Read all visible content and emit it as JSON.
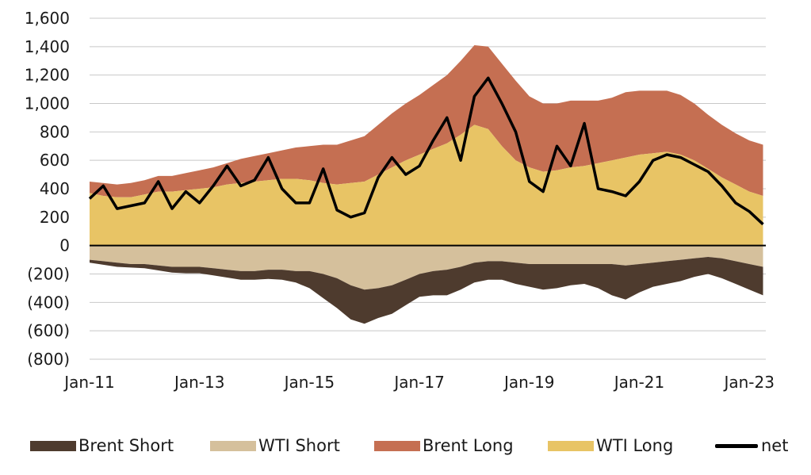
{
  "chart_data": {
    "type": "area",
    "title": "",
    "xlabel": "",
    "ylabel": "",
    "ylim": [
      -800,
      1600
    ],
    "xlim": [
      2011.0,
      2023.3
    ],
    "y_ticks": [
      1600,
      1400,
      1200,
      1000,
      800,
      600,
      400,
      200,
      0,
      -200,
      -400,
      -600,
      -800
    ],
    "y_tick_labels": [
      "1,600",
      "1,400",
      "1,200",
      "1,000",
      "800",
      "600",
      "400",
      "200",
      "0",
      "(200)",
      "(400)",
      "(600)",
      "(800)"
    ],
    "x_ticks": [
      2011,
      2013,
      2015,
      2017,
      2019,
      2021,
      2023
    ],
    "x_tick_labels": [
      "Jan-11",
      "Jan-13",
      "Jan-15",
      "Jan-17",
      "Jan-19",
      "Jan-21",
      "Jan-23"
    ],
    "grid": "horizontal",
    "legend_position": "bottom",
    "x": [
      2011.0,
      2011.25,
      2011.5,
      2011.75,
      2012.0,
      2012.25,
      2012.5,
      2012.75,
      2013.0,
      2013.25,
      2013.5,
      2013.75,
      2014.0,
      2014.25,
      2014.5,
      2014.75,
      2015.0,
      2015.25,
      2015.5,
      2015.75,
      2016.0,
      2016.25,
      2016.5,
      2016.75,
      2017.0,
      2017.25,
      2017.5,
      2017.75,
      2018.0,
      2018.25,
      2018.5,
      2018.75,
      2019.0,
      2019.25,
      2019.5,
      2019.75,
      2020.0,
      2020.25,
      2020.5,
      2020.75,
      2021.0,
      2021.25,
      2021.5,
      2021.75,
      2022.0,
      2022.25,
      2022.5,
      2022.75,
      2023.0,
      2023.25
    ],
    "series": [
      {
        "name": "Brent Short",
        "color": "#4e3b2e",
        "kind": "area-negative",
        "values": [
          -20,
          -25,
          -30,
          -25,
          -30,
          -35,
          -40,
          -45,
          -45,
          -50,
          -55,
          -60,
          -60,
          -65,
          -70,
          -80,
          -120,
          -170,
          -210,
          -240,
          -240,
          -210,
          -200,
          -180,
          -160,
          -170,
          -180,
          -160,
          -140,
          -130,
          -130,
          -150,
          -160,
          -180,
          -170,
          -150,
          -140,
          -170,
          -220,
          -240,
          -200,
          -170,
          -160,
          -150,
          -130,
          -120,
          -140,
          -160,
          -180,
          -200
        ]
      },
      {
        "name": "WTI Short",
        "color": "#d5c09c",
        "kind": "area-negative",
        "values": [
          -100,
          -110,
          -120,
          -130,
          -130,
          -140,
          -150,
          -150,
          -150,
          -160,
          -170,
          -180,
          -180,
          -170,
          -170,
          -180,
          -180,
          -200,
          -230,
          -280,
          -310,
          -300,
          -280,
          -240,
          -200,
          -180,
          -170,
          -150,
          -120,
          -110,
          -110,
          -120,
          -130,
          -130,
          -130,
          -130,
          -130,
          -130,
          -130,
          -140,
          -130,
          -120,
          -110,
          -100,
          -90,
          -80,
          -90,
          -110,
          -130,
          -150
        ]
      },
      {
        "name": "Brent Long",
        "color": "#c56f52",
        "kind": "area-positive",
        "values": [
          80,
          90,
          90,
          100,
          100,
          110,
          110,
          120,
          130,
          140,
          150,
          170,
          180,
          190,
          200,
          220,
          240,
          270,
          280,
          300,
          320,
          350,
          380,
          400,
          420,
          450,
          480,
          520,
          560,
          580,
          580,
          560,
          500,
          480,
          470,
          470,
          460,
          440,
          440,
          460,
          450,
          440,
          430,
          420,
          400,
          380,
          370,
          360,
          360,
          360
        ]
      },
      {
        "name": "WTI Long",
        "color": "#e8c465",
        "kind": "area-positive",
        "values": [
          370,
          350,
          340,
          340,
          360,
          380,
          380,
          390,
          400,
          410,
          430,
          440,
          450,
          460,
          470,
          470,
          460,
          440,
          430,
          440,
          450,
          500,
          550,
          600,
          640,
          680,
          720,
          780,
          850,
          820,
          700,
          600,
          550,
          520,
          530,
          550,
          560,
          580,
          600,
          620,
          640,
          650,
          660,
          640,
          600,
          540,
          480,
          430,
          380,
          350
        ]
      },
      {
        "name": "net",
        "color": "#000000",
        "kind": "line",
        "values": [
          330,
          420,
          260,
          280,
          300,
          450,
          260,
          380,
          300,
          420,
          560,
          420,
          460,
          620,
          400,
          300,
          300,
          540,
          250,
          200,
          230,
          480,
          620,
          500,
          560,
          740,
          900,
          600,
          1050,
          1180,
          1000,
          800,
          450,
          380,
          700,
          560,
          860,
          400,
          380,
          350,
          450,
          600,
          640,
          620,
          570,
          520,
          420,
          300,
          240,
          150
        ]
      }
    ]
  },
  "legend": {
    "items": [
      "Brent Short",
      "WTI Short",
      "Brent Long",
      "WTI Long",
      "net"
    ]
  }
}
